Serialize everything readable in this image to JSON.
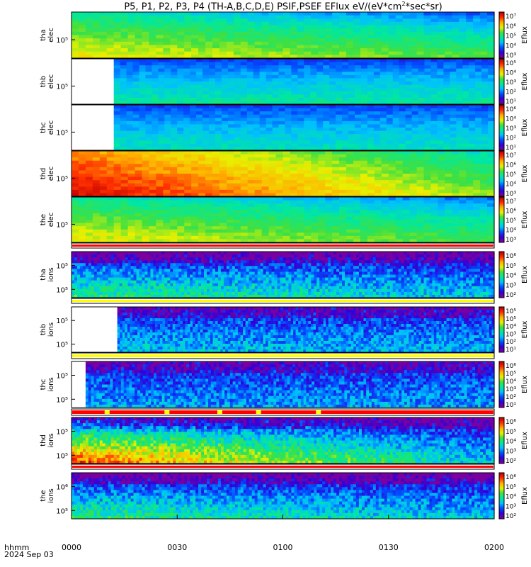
{
  "title": {
    "prefix": "P5, P1, P2, P3, P4 (TH-A,B,C,D,E) PSIF,PSEF EFlux eV/(eV*cm",
    "mid": "*sec*sr)"
  },
  "footer": {
    "time_format_label": "hhmm",
    "date_label": "2024 Sep 03"
  },
  "colors": {
    "colormap": [
      "#7a00a0",
      "#3000d8",
      "#0050ff",
      "#00c0ff",
      "#00e8a0",
      "#40e040",
      "#e8f000",
      "#ffb000",
      "#ff3000",
      "#c00000"
    ],
    "bar_red": "#ff0000",
    "bar_yellow": "#ffff00"
  },
  "chart_data": {
    "type": "heatmap",
    "x_axis": {
      "ticks": [
        "0000",
        "0030",
        "0100",
        "0130",
        "0200"
      ],
      "range_minutes": [
        0,
        120
      ]
    },
    "panels": [
      {
        "label": [
          "tha",
          "elec"
        ],
        "y_ticks": [
          "10⁵"
        ],
        "colorbar": {
          "label": "Eflux",
          "ticks": [
            "10⁷",
            "10⁶",
            "10⁵",
            "10⁴",
            "10³"
          ]
        },
        "intensity": {
          "low_energy_start": 0.68,
          "low_energy_end": 0.56,
          "high_energy_start": 0.45,
          "high_energy_end": 0.22
        },
        "data_start_minute": 0
      },
      {
        "label": [
          "thb",
          "elec"
        ],
        "y_ticks": [
          "10⁵"
        ],
        "colorbar": {
          "label": "Eflux",
          "ticks": [
            "10⁵",
            "10⁴",
            "10³",
            "10²",
            "10¹"
          ]
        },
        "intensity": {
          "low_energy_start": 0.45,
          "low_energy_end": 0.45,
          "high_energy_start": 0.2,
          "high_energy_end": 0.2
        },
        "data_start_minute": 12
      },
      {
        "label": [
          "thc",
          "elec"
        ],
        "y_ticks": [
          "10⁵"
        ],
        "colorbar": {
          "label": "Eflux",
          "ticks": [
            "10⁶",
            "10⁴",
            "10³",
            "10²",
            "10¹"
          ]
        },
        "intensity": {
          "low_energy_start": 0.42,
          "low_energy_end": 0.42,
          "high_energy_start": 0.2,
          "high_energy_end": 0.2
        },
        "data_start_minute": 12
      },
      {
        "label": [
          "thd",
          "elec"
        ],
        "y_ticks": [
          "10⁵"
        ],
        "colorbar": {
          "label": "Eflux",
          "ticks": [
            "10⁷",
            "10⁶",
            "10⁵",
            "10⁴",
            "10³"
          ]
        },
        "intensity": {
          "low_energy_start": 0.96,
          "low_energy_end": 0.6,
          "high_energy_start": 0.8,
          "high_energy_end": 0.4
        },
        "data_start_minute": 0
      },
      {
        "label": [
          "the",
          "elec"
        ],
        "y_ticks": [
          "10⁵"
        ],
        "colorbar": {
          "label": "Eflux",
          "ticks": [
            "10⁷",
            "10⁶",
            "10⁵",
            "10⁴",
            "10³"
          ]
        },
        "intensity": {
          "low_energy_start": 0.68,
          "low_energy_end": 0.55,
          "high_energy_start": 0.45,
          "high_energy_end": 0.25
        },
        "data_start_minute": 0
      },
      {
        "label": [
          "tha",
          "ions"
        ],
        "y_ticks": [
          "10⁵",
          "10⁵"
        ],
        "colorbar": {
          "label": "Eflux",
          "ticks": [
            "10⁶",
            "10⁵",
            "10⁴",
            "10³",
            "10²"
          ]
        },
        "intensity": {
          "low_energy_start": 0.5,
          "low_energy_end": 0.35,
          "high_energy_start": 0.05,
          "high_energy_end": 0.05
        },
        "data_start_minute": 0
      },
      {
        "label": [
          "thb",
          "ions"
        ],
        "y_ticks": [
          "10⁵",
          "10⁵"
        ],
        "colorbar": {
          "label": "Eflux",
          "ticks": [
            "10⁵",
            "10⁵",
            "10⁴",
            "10³",
            "10²",
            "10¹"
          ]
        },
        "intensity": {
          "low_energy_start": 0.35,
          "low_energy_end": 0.32,
          "high_energy_start": 0.12,
          "high_energy_end": 0.12
        },
        "data_start_minute": 13
      },
      {
        "label": [
          "thc",
          "ions"
        ],
        "y_ticks": [
          "10⁵",
          "10⁵"
        ],
        "colorbar": {
          "label": "Eflux",
          "ticks": [
            "10⁶",
            "10⁵",
            "10⁴",
            "10³",
            "10²",
            "10¹"
          ]
        },
        "intensity": {
          "low_energy_start": 0.3,
          "low_energy_end": 0.3,
          "high_energy_start": 0.12,
          "high_energy_end": 0.12
        },
        "data_start_minute": 4
      },
      {
        "label": [
          "thd",
          "ions"
        ],
        "y_ticks": [
          "10⁵",
          "10⁵"
        ],
        "colorbar": {
          "label": "Eflux",
          "ticks": [
            "10⁶",
            "10⁵",
            "10⁴",
            "10³",
            "10²"
          ]
        },
        "intensity": {
          "low_energy_start": 0.88,
          "low_energy_end": 0.35,
          "high_energy_start": 0.15,
          "high_energy_end": 0.05
        },
        "data_start_minute": 0
      },
      {
        "label": [
          "the",
          "ions"
        ],
        "y_ticks": [
          "10⁶",
          "10⁵"
        ],
        "colorbar": {
          "label": "Eflux",
          "ticks": [
            "10⁶",
            "10⁵",
            "10⁴",
            "10³",
            "10²"
          ]
        },
        "intensity": {
          "low_energy_start": 0.5,
          "low_energy_end": 0.35,
          "high_energy_start": 0.05,
          "high_energy_end": 0.05
        },
        "data_start_minute": 0
      }
    ],
    "status_bars": [
      {
        "after_panel": 4,
        "color": "red"
      },
      {
        "after_panel": 5,
        "color": "yellow"
      },
      {
        "after_panel": 6,
        "color": "yellow"
      },
      {
        "after_panel": 7,
        "color": "red",
        "yellow_marks_minutes": [
          10,
          27,
          42,
          53,
          70
        ]
      },
      {
        "after_panel": 8,
        "color": "red"
      }
    ]
  }
}
